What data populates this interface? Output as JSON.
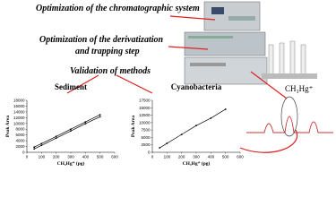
{
  "headings": {
    "chromatographic": "Optimization of the chromatographic system",
    "derivatization": [
      "Optimization of the derivatization",
      "and trapping step"
    ],
    "validation": "Validation of methods",
    "peak_label": "CH₃Hg⁺"
  },
  "chart_data": [
    {
      "type": "line",
      "title": "Sediment",
      "x_label": "CH₃Hg⁺ (pg)",
      "y_label": "Peak Area",
      "x": [
        50,
        100,
        200,
        300,
        400,
        500
      ],
      "series": [
        {
          "color": "#000000",
          "values": [
            1800,
            3000,
            5500,
            8000,
            10500,
            13000
          ]
        },
        {
          "color": "#000000",
          "values": [
            1200,
            2400,
            4900,
            7400,
            9900,
            12300
          ]
        }
      ],
      "xlim": [
        0,
        600
      ],
      "xticks": [
        0,
        100,
        200,
        300,
        400,
        500,
        600
      ],
      "ylim": [
        0,
        18000
      ],
      "yticks": [
        0,
        2000,
        4000,
        6000,
        8000,
        10000,
        12000,
        14000,
        16000,
        18000
      ]
    },
    {
      "type": "line",
      "title": "Cyanobacteria",
      "x_label": "CH₃Hg⁺ (pg)",
      "y_label": "Peak Area",
      "x": [
        50,
        100,
        200,
        300,
        400,
        500
      ],
      "series": [
        {
          "color": "#000000",
          "values": [
            1500,
            3000,
            6000,
            9000,
            11500,
            14500
          ]
        }
      ],
      "xlim": [
        0,
        600
      ],
      "xticks": [
        0,
        100,
        200,
        300,
        400,
        500,
        600
      ],
      "ylim": [
        0,
        17500
      ],
      "yticks": [
        0,
        2500,
        5000,
        7500,
        10000,
        12500,
        15000,
        17500
      ]
    }
  ]
}
